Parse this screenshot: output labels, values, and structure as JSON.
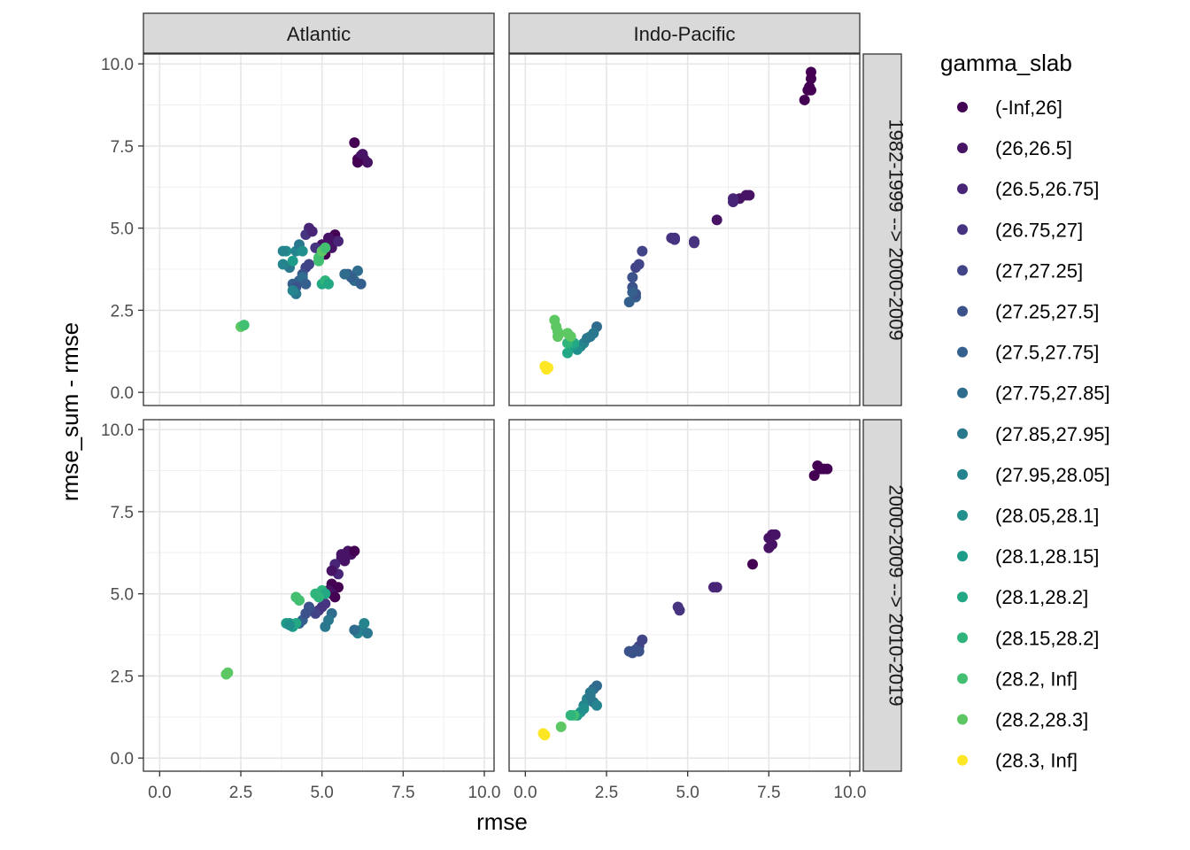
{
  "chart_data": {
    "type": "scatter",
    "facet_type": "grid",
    "xlabel": "rmse",
    "ylabel": "rmse_sum - rmse",
    "xlim": [
      -0.5,
      10.3
    ],
    "ylim": [
      -0.4,
      10.3
    ],
    "x_ticks": [
      "0.0",
      "2.5",
      "5.0",
      "7.5",
      "10.0"
    ],
    "x_tick_values": [
      0,
      2.5,
      5,
      7.5,
      10
    ],
    "y_ticks": [
      "0.0",
      "2.5",
      "5.0",
      "7.5",
      "10.0"
    ],
    "y_tick_values": [
      0,
      2.5,
      5,
      7.5,
      10
    ],
    "columns": [
      "Atlantic",
      "Indo-Pacific"
    ],
    "rows": [
      "1982-1999 --> 2000-2009",
      "2000-2009 --> 2010-2019"
    ],
    "legend": {
      "title": "gamma_slab",
      "position": "right",
      "entries": [
        {
          "label": "(-Inf,26]",
          "color": "#440154"
        },
        {
          "label": "(26,26.5]",
          "color": "#471365"
        },
        {
          "label": "(26.5,26.75]",
          "color": "#482576"
        },
        {
          "label": "(26.75,27]",
          "color": "#463480"
        },
        {
          "label": "(27,27.25]",
          "color": "#414487"
        },
        {
          "label": "(27.25,27.5]",
          "color": "#3B528B"
        },
        {
          "label": "(27.5,27.75]",
          "color": "#35608D"
        },
        {
          "label": "(27.75,27.85]",
          "color": "#2F6C8E"
        },
        {
          "label": "(27.85,27.95]",
          "color": "#2A788E"
        },
        {
          "label": "(27.95,28.05]",
          "color": "#25848E"
        },
        {
          "label": "(28.05,28.1]",
          "color": "#21908C"
        },
        {
          "label": "(28.1,28.15]",
          "color": "#1E9C89"
        },
        {
          "label": "(28.1,28.2]",
          "color": "#22A884"
        },
        {
          "label": "(28.15,28.2]",
          "color": "#2FB47C"
        },
        {
          "label": "(28.2, Inf]",
          "color": "#43BF71"
        },
        {
          "label": "(28.2,28.3]",
          "color": "#5DC863"
        },
        {
          "label": "(28.3, Inf]",
          "color": "#FDE725"
        }
      ]
    },
    "panels": [
      {
        "column": "Atlantic",
        "row": "1982-1999 --> 2000-2009",
        "points": [
          [
            6.0,
            7.6,
            0
          ],
          [
            6.1,
            7.1,
            0
          ],
          [
            6.2,
            7.2,
            1
          ],
          [
            6.3,
            7.1,
            1
          ],
          [
            6.4,
            7.0,
            1
          ],
          [
            6.1,
            7.0,
            0
          ],
          [
            6.25,
            7.25,
            1
          ],
          [
            5.0,
            4.5,
            1
          ],
          [
            5.2,
            4.5,
            1
          ],
          [
            5.4,
            4.8,
            0
          ],
          [
            5.4,
            4.6,
            1
          ],
          [
            5.3,
            4.4,
            1
          ],
          [
            5.1,
            4.2,
            0
          ],
          [
            5.5,
            4.6,
            2
          ],
          [
            5.0,
            4.3,
            1
          ],
          [
            5.2,
            4.7,
            1
          ],
          [
            4.6,
            5.0,
            2
          ],
          [
            4.5,
            4.8,
            3
          ],
          [
            4.7,
            4.9,
            2
          ],
          [
            4.8,
            4.4,
            3
          ],
          [
            4.6,
            3.9,
            4
          ],
          [
            4.5,
            3.8,
            4
          ],
          [
            4.4,
            3.6,
            5
          ],
          [
            4.3,
            3.4,
            6
          ],
          [
            4.1,
            3.3,
            6
          ],
          [
            4.2,
            3.2,
            5
          ],
          [
            4.4,
            3.5,
            7
          ],
          [
            4.5,
            3.3,
            6
          ],
          [
            4.2,
            3.0,
            8
          ],
          [
            4.1,
            3.1,
            9
          ],
          [
            4.0,
            3.8,
            8
          ],
          [
            3.8,
            3.9,
            9
          ],
          [
            3.9,
            4.3,
            10
          ],
          [
            4.1,
            4.0,
            11
          ],
          [
            4.2,
            4.3,
            9
          ],
          [
            4.3,
            4.5,
            8
          ],
          [
            4.4,
            4.3,
            10
          ],
          [
            3.8,
            4.3,
            9
          ],
          [
            5.8,
            3.6,
            6
          ],
          [
            6.0,
            3.4,
            7
          ],
          [
            6.2,
            3.3,
            6
          ],
          [
            6.1,
            3.7,
            7
          ],
          [
            5.9,
            3.5,
            6
          ],
          [
            5.7,
            3.6,
            7
          ],
          [
            5.0,
            3.3,
            12
          ],
          [
            5.1,
            3.4,
            13
          ],
          [
            5.2,
            3.3,
            12
          ],
          [
            4.9,
            4.1,
            14
          ],
          [
            5.0,
            4.3,
            15
          ],
          [
            4.9,
            4.0,
            14
          ],
          [
            5.1,
            4.4,
            14
          ],
          [
            2.5,
            2.0,
            15
          ],
          [
            2.6,
            2.05,
            14
          ]
        ]
      },
      {
        "column": "Indo-Pacific",
        "row": "1982-1999 --> 2000-2009",
        "points": [
          [
            8.8,
            9.75,
            0
          ],
          [
            8.8,
            9.55,
            0
          ],
          [
            8.8,
            9.2,
            0
          ],
          [
            8.7,
            9.2,
            0
          ],
          [
            8.6,
            8.9,
            0
          ],
          [
            8.75,
            9.3,
            0
          ],
          [
            6.9,
            6.0,
            1
          ],
          [
            6.8,
            6.0,
            1
          ],
          [
            6.6,
            5.9,
            1
          ],
          [
            6.4,
            5.8,
            2
          ],
          [
            6.4,
            5.9,
            2
          ],
          [
            5.9,
            5.25,
            1
          ],
          [
            5.2,
            4.6,
            3
          ],
          [
            5.2,
            4.55,
            3
          ],
          [
            4.6,
            4.7,
            3
          ],
          [
            4.5,
            4.7,
            3
          ],
          [
            4.6,
            4.65,
            3
          ],
          [
            3.6,
            4.3,
            4
          ],
          [
            3.5,
            3.9,
            4
          ],
          [
            3.4,
            3.8,
            4
          ],
          [
            3.3,
            3.5,
            5
          ],
          [
            3.3,
            3.2,
            5
          ],
          [
            3.4,
            2.9,
            6
          ],
          [
            3.4,
            3.0,
            5
          ],
          [
            3.2,
            2.75,
            6
          ],
          [
            3.3,
            3.05,
            6
          ],
          [
            2.2,
            2.0,
            7
          ],
          [
            2.1,
            1.8,
            8
          ],
          [
            2.0,
            1.7,
            8
          ],
          [
            1.8,
            1.5,
            9
          ],
          [
            1.7,
            1.4,
            9
          ],
          [
            1.6,
            1.3,
            10
          ],
          [
            1.9,
            1.65,
            8
          ],
          [
            1.4,
            1.4,
            11
          ],
          [
            1.3,
            1.2,
            12
          ],
          [
            1.5,
            1.5,
            12
          ],
          [
            1.3,
            1.5,
            13
          ],
          [
            1.3,
            1.8,
            15
          ],
          [
            1.4,
            1.7,
            15
          ],
          [
            1.0,
            1.7,
            15
          ],
          [
            1.0,
            1.85,
            15
          ],
          [
            0.9,
            2.2,
            15
          ],
          [
            0.95,
            2.0,
            15
          ],
          [
            0.6,
            0.8,
            16
          ],
          [
            0.65,
            0.7,
            16
          ],
          [
            0.7,
            0.75,
            16
          ]
        ]
      },
      {
        "column": "Atlantic",
        "row": "2000-2009 --> 2010-2019",
        "points": [
          [
            5.8,
            6.3,
            1
          ],
          [
            5.9,
            6.2,
            1
          ],
          [
            6.0,
            6.3,
            0
          ],
          [
            5.6,
            6.2,
            1
          ],
          [
            5.6,
            6.1,
            1
          ],
          [
            5.7,
            6.0,
            1
          ],
          [
            5.4,
            5.9,
            2
          ],
          [
            5.5,
            5.6,
            2
          ],
          [
            5.3,
            5.7,
            1
          ],
          [
            5.3,
            5.3,
            0
          ],
          [
            5.4,
            5.2,
            0
          ],
          [
            5.5,
            5.2,
            0
          ],
          [
            5.3,
            5.0,
            1
          ],
          [
            5.2,
            5.1,
            1
          ],
          [
            5.4,
            4.9,
            0
          ],
          [
            5.1,
            4.7,
            3
          ],
          [
            5.0,
            4.6,
            3
          ],
          [
            4.9,
            4.5,
            3
          ],
          [
            4.8,
            4.4,
            4
          ],
          [
            4.6,
            4.6,
            5
          ],
          [
            4.4,
            4.2,
            6
          ],
          [
            4.3,
            4.1,
            6
          ],
          [
            4.5,
            4.4,
            5
          ],
          [
            5.3,
            4.4,
            7
          ],
          [
            5.2,
            4.2,
            8
          ],
          [
            5.1,
            4.0,
            8
          ],
          [
            6.2,
            3.9,
            8
          ],
          [
            6.1,
            3.8,
            9
          ],
          [
            6.3,
            4.1,
            9
          ],
          [
            6.4,
            3.8,
            8
          ],
          [
            6.0,
            3.9,
            7
          ],
          [
            4.0,
            4.1,
            10
          ],
          [
            4.1,
            4.0,
            11
          ],
          [
            4.2,
            4.1,
            12
          ],
          [
            3.9,
            4.1,
            11
          ],
          [
            4.0,
            4.05,
            10
          ],
          [
            4.2,
            4.9,
            14
          ],
          [
            4.3,
            4.8,
            14
          ],
          [
            4.8,
            5.0,
            13
          ],
          [
            5.0,
            5.1,
            13
          ],
          [
            5.1,
            5.0,
            12
          ],
          [
            4.9,
            4.9,
            13
          ],
          [
            2.1,
            2.6,
            15
          ],
          [
            2.05,
            2.55,
            15
          ]
        ]
      },
      {
        "column": "Indo-Pacific",
        "row": "2000-2009 --> 2010-2019",
        "points": [
          [
            9.0,
            8.9,
            0
          ],
          [
            9.1,
            8.8,
            0
          ],
          [
            9.2,
            8.8,
            0
          ],
          [
            9.3,
            8.8,
            0
          ],
          [
            8.9,
            8.6,
            0
          ],
          [
            7.6,
            6.8,
            1
          ],
          [
            7.5,
            6.7,
            1
          ],
          [
            7.7,
            6.8,
            1
          ],
          [
            7.5,
            6.4,
            1
          ],
          [
            7.6,
            6.5,
            1
          ],
          [
            7.0,
            5.9,
            0
          ],
          [
            5.8,
            5.2,
            2
          ],
          [
            5.9,
            5.2,
            2
          ],
          [
            4.7,
            4.6,
            3
          ],
          [
            4.75,
            4.5,
            3
          ],
          [
            3.6,
            3.6,
            4
          ],
          [
            3.5,
            3.4,
            4
          ],
          [
            3.4,
            3.3,
            5
          ],
          [
            3.3,
            3.2,
            5
          ],
          [
            3.2,
            3.25,
            5
          ],
          [
            3.5,
            3.25,
            5
          ],
          [
            2.2,
            2.2,
            7
          ],
          [
            2.1,
            2.1,
            7
          ],
          [
            2.0,
            2.0,
            8
          ],
          [
            1.9,
            1.8,
            9
          ],
          [
            1.8,
            1.6,
            9
          ],
          [
            2.1,
            1.7,
            8
          ],
          [
            2.2,
            1.6,
            9
          ],
          [
            1.7,
            1.4,
            10
          ],
          [
            1.6,
            1.3,
            11
          ],
          [
            2.0,
            1.9,
            8
          ],
          [
            1.8,
            1.5,
            10
          ],
          [
            1.5,
            1.3,
            14
          ],
          [
            1.4,
            1.3,
            13
          ],
          [
            1.1,
            0.95,
            15
          ],
          [
            0.6,
            0.7,
            16
          ],
          [
            0.55,
            0.75,
            16
          ],
          [
            0.6,
            0.7,
            16
          ]
        ]
      }
    ]
  }
}
